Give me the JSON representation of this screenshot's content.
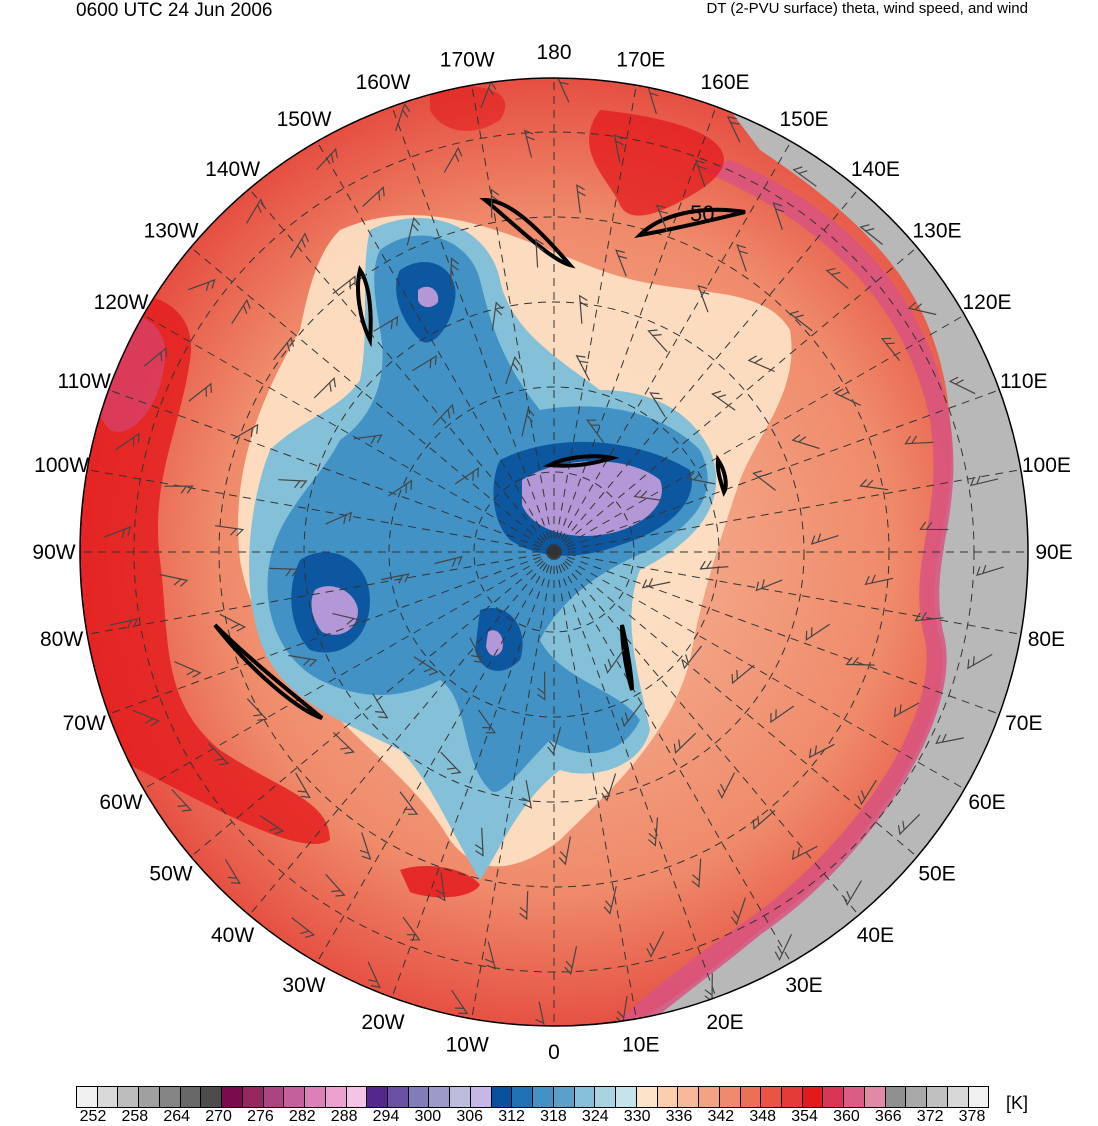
{
  "header": {
    "left": "0600 UTC 24 Jun 2006",
    "right": "DT (2-PVU surface) theta, wind speed, and wind"
  },
  "map": {
    "projection": "north-polar-stereographic",
    "field": "DT potential temperature (K)",
    "contour_label": "50",
    "longitude_labels": [
      {
        "text": "180",
        "deg": 180
      },
      {
        "text": "170E",
        "deg": 170
      },
      {
        "text": "160E",
        "deg": 160
      },
      {
        "text": "150E",
        "deg": 150
      },
      {
        "text": "140E",
        "deg": 140
      },
      {
        "text": "130E",
        "deg": 130
      },
      {
        "text": "120E",
        "deg": 120
      },
      {
        "text": "110E",
        "deg": 110
      },
      {
        "text": "100E",
        "deg": 100
      },
      {
        "text": "90E",
        "deg": 90
      },
      {
        "text": "80E",
        "deg": 80
      },
      {
        "text": "70E",
        "deg": 70
      },
      {
        "text": "60E",
        "deg": 60
      },
      {
        "text": "50E",
        "deg": 50
      },
      {
        "text": "40E",
        "deg": 40
      },
      {
        "text": "30E",
        "deg": 30
      },
      {
        "text": "20E",
        "deg": 20
      },
      {
        "text": "10E",
        "deg": 10
      },
      {
        "text": "0",
        "deg": 0
      },
      {
        "text": "10W",
        "deg": -10
      },
      {
        "text": "20W",
        "deg": -20
      },
      {
        "text": "30W",
        "deg": -30
      },
      {
        "text": "40W",
        "deg": -40
      },
      {
        "text": "50W",
        "deg": -50
      },
      {
        "text": "60W",
        "deg": -60
      },
      {
        "text": "70W",
        "deg": -70
      },
      {
        "text": "80W",
        "deg": -80
      },
      {
        "text": "90W",
        "deg": -90
      },
      {
        "text": "100W",
        "deg": -100
      },
      {
        "text": "110W",
        "deg": -110
      },
      {
        "text": "120W",
        "deg": -120
      },
      {
        "text": "130W",
        "deg": -130
      },
      {
        "text": "140W",
        "deg": -140
      },
      {
        "text": "150W",
        "deg": -150
      },
      {
        "text": "160W",
        "deg": -160
      },
      {
        "text": "170W",
        "deg": -170
      }
    ],
    "colors": {
      "background_warm": "#ef8a6a",
      "cold_deep": "#2166ac",
      "cold_mid": "#4393c3",
      "cold_light": "#92c5de",
      "pale": "#fddbc7",
      "hot": "#e31a1c",
      "magenta": "#d6456f",
      "grey": "#a9a9a9",
      "lavender": "#b497d6"
    }
  },
  "colorbar": {
    "unit": "[K]",
    "labels": [
      "252",
      "258",
      "264",
      "270",
      "276",
      "282",
      "288",
      "294",
      "300",
      "306",
      "312",
      "318",
      "324",
      "330",
      "336",
      "342",
      "348",
      "354",
      "360",
      "366",
      "372",
      "378"
    ],
    "colors": [
      "#f0f0f0",
      "#d9d9d9",
      "#bdbdbd",
      "#a0a0a0",
      "#848484",
      "#686868",
      "#4c4c4c",
      "#7a0c4d",
      "#93275e",
      "#ab4480",
      "#c4609a",
      "#dc80b8",
      "#eba2d2",
      "#f5c3e6",
      "#54278f",
      "#6a51a3",
      "#807dba",
      "#9e9ac8",
      "#bcbddc",
      "#c6b7e6",
      "#08519c",
      "#2171b5",
      "#4292c6",
      "#5aa0c8",
      "#84c0d8",
      "#a8d4e0",
      "#c6e3e9",
      "#fde3c8",
      "#fbcfae",
      "#f7b99a",
      "#f3a385",
      "#ef8a6a",
      "#ec7056",
      "#e85545",
      "#e43b38",
      "#e31a1c",
      "#d83456",
      "#dc5c86",
      "#e08aa6",
      "#909090",
      "#a8a8a8",
      "#c0c0c0",
      "#d8d8d8",
      "#f0f0f0"
    ]
  }
}
